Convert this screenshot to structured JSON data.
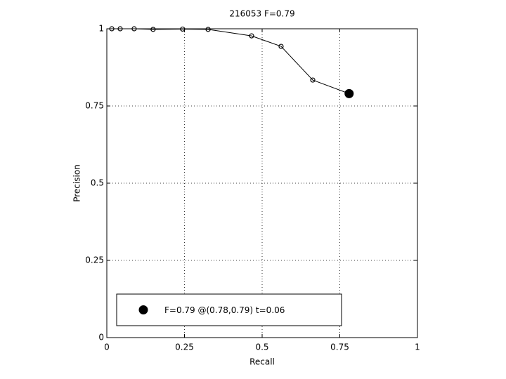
{
  "chart_data": {
    "type": "line",
    "title": "216053 F=0.79",
    "x_label": "Recall",
    "y_label": "Precision",
    "xlim": [
      0,
      1
    ],
    "ylim": [
      0,
      1
    ],
    "xticks": [
      0,
      0.25,
      0.5,
      0.75,
      1
    ],
    "yticks": [
      0,
      0.25,
      0.5,
      0.75,
      1
    ],
    "grid": true,
    "legend_location": "southwest",
    "series": [
      {
        "color": "#000000",
        "marker": "open-circle",
        "x": [
          0.016,
          0.043,
          0.088,
          0.149,
          0.244,
          0.326,
          0.466,
          0.561,
          0.663,
          0.78
        ],
        "values": [
          1.0,
          1.0,
          1.0,
          0.998,
          0.999,
          0.998,
          0.977,
          0.943,
          0.834,
          0.79
        ]
      },
      {
        "name": "F=0.79 @(0.78,0.79) t=0.06",
        "color": "#000000",
        "marker": "filled-circle",
        "x": [
          0.78
        ],
        "values": [
          0.79
        ]
      }
    ]
  }
}
